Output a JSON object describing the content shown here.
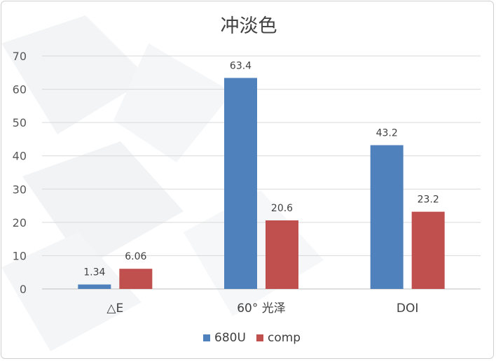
{
  "chart_data": {
    "type": "bar",
    "title": "冲淡色",
    "categories": [
      "△E",
      "60°  光泽",
      "DOI"
    ],
    "series": [
      {
        "name": "680U",
        "color": "#4F81BD",
        "values": [
          1.34,
          63.4,
          43.2
        ],
        "labels": [
          "1.34",
          "63.4",
          "43.2"
        ]
      },
      {
        "name": "comp",
        "color": "#C0504D",
        "values": [
          6.06,
          20.6,
          23.2
        ],
        "labels": [
          "6.06",
          "20.6",
          "23.2"
        ]
      }
    ],
    "ylim": [
      0,
      70
    ],
    "yticks": [
      "0",
      "10",
      "20",
      "30",
      "40",
      "50",
      "60",
      "70"
    ],
    "grid": true,
    "legend_position": "bottom",
    "colors": {
      "gridline": "#D9D9D9",
      "axis": "#BFBFBF"
    }
  }
}
